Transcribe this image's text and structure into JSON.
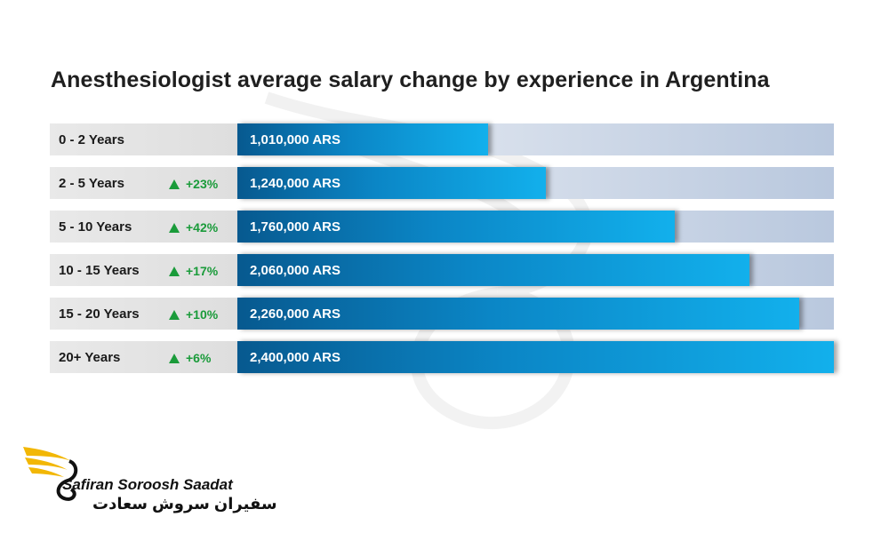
{
  "chart_data": {
    "type": "bar",
    "title": "Anesthesiologist average salary change by experience in Argentina",
    "categories": [
      "0 - 2 Years",
      "2 - 5 Years",
      "5 - 10 Years",
      "10 - 15 Years",
      "15 - 20 Years",
      "20+ Years"
    ],
    "values": [
      1010000,
      1240000,
      1760000,
      2060000,
      2260000,
      2400000
    ],
    "value_labels": [
      "1,010,000 ARS",
      "1,240,000 ARS",
      "1,760,000 ARS",
      "2,060,000 ARS",
      "2,260,000 ARS",
      "2,400,000 ARS"
    ],
    "changes": [
      "",
      "+23%",
      "+42%",
      "+17%",
      "+10%",
      "+6%"
    ],
    "orientation": "horizontal",
    "xlim": [
      0,
      2400000
    ],
    "grid": false,
    "colors": {
      "bar": "#0b86c6",
      "track": "#c9d5e6",
      "change": "#1a9b3a"
    }
  },
  "logo": {
    "name_en": "Safiran Soroosh Saadat",
    "name_fa": "سفیران سروش سعادت",
    "icon": "wing-logo-icon"
  }
}
